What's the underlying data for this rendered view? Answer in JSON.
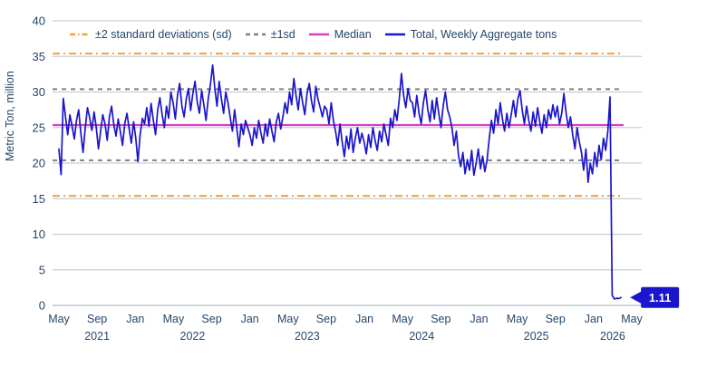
{
  "chart_data": {
    "type": "line",
    "title": "",
    "ylabel": "Metric Ton, million",
    "xlabel": "",
    "ylim": [
      0,
      40
    ],
    "y_ticks": [
      0,
      5,
      10,
      15,
      20,
      25,
      30,
      35,
      40
    ],
    "grid": true,
    "legend_position": "top",
    "x_tick_months": [
      0,
      4,
      8,
      12,
      16,
      20,
      24,
      28,
      32,
      36,
      40,
      44,
      48,
      52,
      56,
      60
    ],
    "x_tick_labels": [
      "May",
      "Sep",
      "Jan",
      "May",
      "Sep",
      "Jan",
      "May",
      "Sep",
      "Jan",
      "May",
      "Sep",
      "Jan",
      "May",
      "Sep",
      "Jan",
      "May"
    ],
    "year_labels": [
      {
        "month": 4,
        "label": "2021"
      },
      {
        "month": 14,
        "label": "2022"
      },
      {
        "month": 26,
        "label": "2023"
      },
      {
        "month": 38,
        "label": "2024"
      },
      {
        "month": 50,
        "label": "2025"
      },
      {
        "month": 58,
        "label": "2026"
      }
    ],
    "legend": [
      {
        "label": "±2 standard deviations (sd)",
        "color": "#eda43c",
        "dash": "6 3 1.5 3"
      },
      {
        "label": "±1sd",
        "color": "#808080",
        "dash": "5 4"
      },
      {
        "label": "Median",
        "color": "#d63ec9",
        "dash": ""
      },
      {
        "label": "Total, Weekly Aggregate tons",
        "color": "#1b15cb",
        "dash": ""
      }
    ],
    "reference_lines": [
      {
        "name": "plus-2sd",
        "value": 35.4,
        "color": "#eda43c",
        "dash": "8 4 2 4",
        "width": 2
      },
      {
        "name": "plus-1sd",
        "value": 30.4,
        "color": "#808080",
        "dash": "5 5",
        "width": 2
      },
      {
        "name": "median",
        "value": 25.35,
        "color": "#d63ec9",
        "dash": "",
        "width": 2.2
      },
      {
        "name": "minus-1sd",
        "value": 20.4,
        "color": "#808080",
        "dash": "5 5",
        "width": 2
      },
      {
        "name": "minus-2sd",
        "value": 15.4,
        "color": "#eda43c",
        "dash": "8 4 2 4",
        "width": 2
      }
    ],
    "series": [
      {
        "name": "Total, Weekly Aggregate tons",
        "start": "May 2021",
        "frequency": "weekly",
        "values": [
          22,
          18.4,
          29.1,
          26.5,
          24,
          26.8,
          25.2,
          23.4,
          26,
          27.5,
          24.2,
          21.5,
          25,
          27.8,
          26.4,
          24.6,
          27.2,
          25,
          22,
          24.5,
          26.8,
          25.5,
          23.2,
          26.5,
          28,
          25.4,
          23.8,
          26.2,
          24.4,
          22.5,
          25.6,
          27,
          24.8,
          22.8,
          25.8,
          23.5,
          20.2,
          24,
          26.3,
          25.5,
          27.8,
          25.2,
          28.4,
          26,
          24,
          27.5,
          29.2,
          26.8,
          25,
          28,
          26.3,
          30,
          28.5,
          26.2,
          29.5,
          31.2,
          28,
          26.5,
          29,
          30.5,
          27.4,
          29.8,
          31.5,
          28.6,
          27,
          30.2,
          28.2,
          26,
          29,
          31,
          33.8,
          30.5,
          28,
          31.5,
          29,
          27,
          30,
          28.5,
          26.5,
          24.5,
          27.5,
          25,
          22.3,
          25.5,
          24,
          26,
          25,
          24,
          22.5,
          25,
          23.5,
          26,
          24.2,
          22.8,
          25.5,
          23.8,
          26.2,
          24.5,
          23,
          25.8,
          27,
          24.8,
          26.5,
          28.5,
          27,
          30,
          28.2,
          31.9,
          29.5,
          27.5,
          30.5,
          28.5,
          26.8,
          29.8,
          31.2,
          28.8,
          27.2,
          30.8,
          29,
          27.8,
          26.5,
          28,
          27.5,
          25.5,
          28.5,
          26,
          24.5,
          22.5,
          25.5,
          23,
          20.9,
          23.8,
          22,
          24.8,
          21.5,
          23.5,
          25,
          22.8,
          24.2,
          23,
          21.3,
          24,
          22.2,
          25,
          23.2,
          21.8,
          24.5,
          23,
          25.5,
          24,
          22.5,
          26.3,
          25,
          27.5,
          26,
          29,
          32.6,
          29.5,
          27.8,
          30.5,
          28.8,
          28.5,
          26.5,
          29.5,
          27,
          25.5,
          28.5,
          30.2,
          27.5,
          25.8,
          28.8,
          26.2,
          29.2,
          27,
          25,
          28,
          30,
          27.5,
          26.5,
          25,
          22.5,
          24.5,
          21,
          19.5,
          21.5,
          18.5,
          20.5,
          19,
          21.8,
          18.3,
          20,
          22,
          19.2,
          21,
          18.8,
          20.5,
          23.5,
          26,
          24.2,
          27.5,
          25.5,
          28.5,
          26.2,
          24.5,
          27,
          25,
          26.8,
          28.8,
          26.5,
          29,
          30.2,
          27.5,
          25.5,
          28,
          26,
          24.5,
          27.2,
          25.2,
          27.8,
          25.8,
          24.2,
          26.8,
          25,
          27.5,
          26.2,
          28.2,
          26.5,
          28,
          25.5,
          27,
          29.8,
          27,
          25,
          26.5,
          24,
          22,
          25,
          23,
          21.5,
          19,
          22,
          17.3,
          20,
          18.5,
          21.5,
          19.5,
          22.5,
          20.5,
          23.5,
          21.8,
          24.5,
          29.3,
          1.4,
          0.9,
          1,
          0.95,
          1.11
        ]
      }
    ],
    "end_label": {
      "text": "1.11"
    },
    "colors": {
      "background": "#ffffff",
      "grid": "#c9cdd3",
      "baseline": "#b4bac2",
      "axis_text": "#26466c",
      "series": "#1b15cb",
      "callout_bg": "#1b15cb",
      "callout_text": "#ffffff"
    }
  }
}
